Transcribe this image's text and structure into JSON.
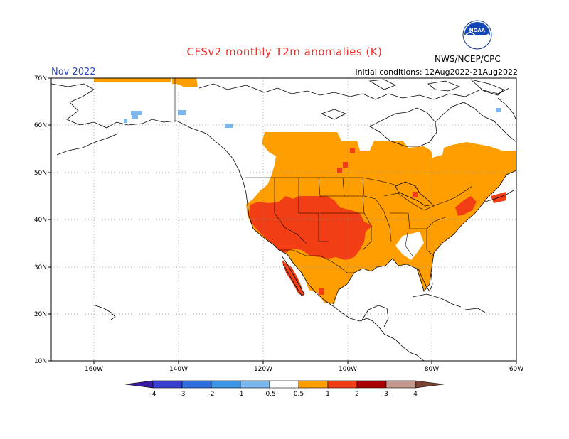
{
  "header": {
    "title": "CFSv2 monthly T2m anomalies (K)",
    "month": "Nov 2022",
    "initial_conditions": "Initial conditions: 12Aug2022-21Aug2022",
    "agency": "NWS/NCEP/CPC",
    "logo_text": "NOAA"
  },
  "map": {
    "lon_ticks": [
      "160W",
      "140W",
      "120W",
      "100W",
      "80W",
      "60W"
    ],
    "lat_ticks": [
      "70N",
      "60N",
      "50N",
      "40N",
      "30N",
      "20N",
      "10N"
    ],
    "lon_range": [
      -170,
      -60
    ],
    "lat_range": [
      10,
      70
    ]
  },
  "colorbar": {
    "labels": [
      "-4",
      "-3",
      "-2",
      "-1",
      "-0.5",
      "0.5",
      "1",
      "2",
      "3",
      "4"
    ],
    "colors": {
      "lt_-4": "#3a1aa0",
      "-4_-3": "#3b3fd0",
      "-3_-2": "#2f6ee0",
      "-2_-1": "#3b96e8",
      "-1_-0.5": "#7ab8ef",
      "-0.5_0.5": "#ffffff",
      "0.5_1": "#ff9e00",
      "1_2": "#f23e14",
      "2_3": "#a80000",
      "3_4": "#c49a8e",
      "gt_4": "#7a4030"
    }
  }
}
